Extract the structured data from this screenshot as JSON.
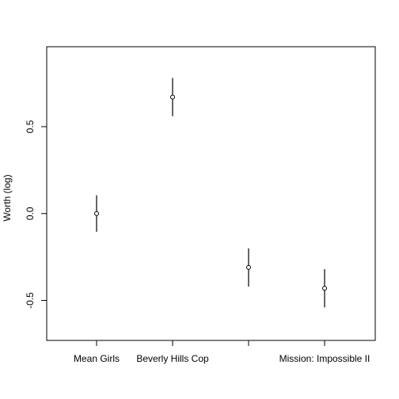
{
  "chart_data": {
    "type": "scatter",
    "title": "",
    "xlabel": "",
    "ylabel": "Worth (log)",
    "categories": [
      "Mean Girls",
      "Beverly Hills Cop",
      "",
      "Mission: Impossible II"
    ],
    "estimates": [
      0.0,
      0.67,
      -0.31,
      -0.43
    ],
    "lower": [
      -0.105,
      0.56,
      -0.42,
      -0.54
    ],
    "upper": [
      0.105,
      0.78,
      -0.2,
      -0.32
    ],
    "y_ticks": [
      -0.5,
      0.0,
      0.5
    ],
    "y_tick_labels": [
      "-0.5",
      "0.0",
      "0.5"
    ],
    "ylim": [
      -0.73,
      0.96
    ],
    "grid": false,
    "legend": "none"
  }
}
